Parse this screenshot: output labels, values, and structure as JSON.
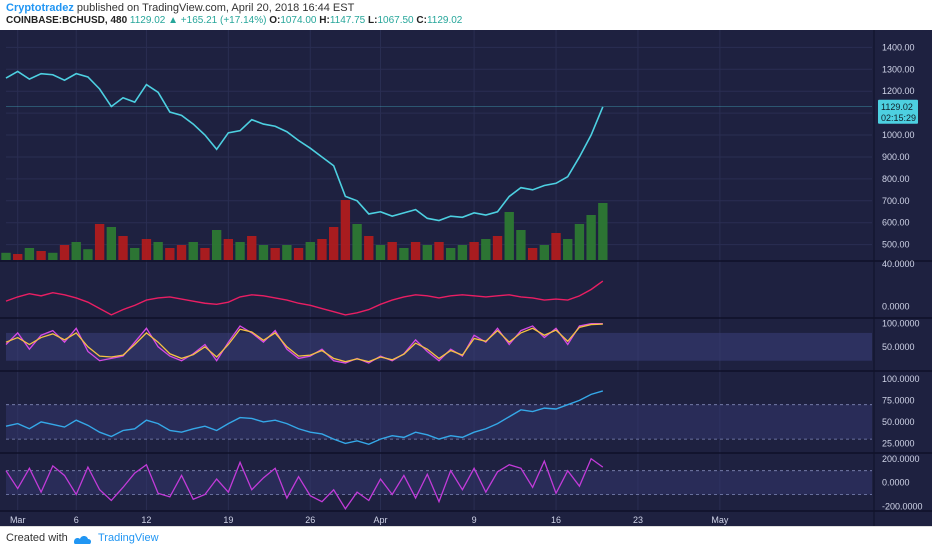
{
  "header": {
    "author": "Cryptotradez",
    "published": "published on TradingView.com, April 20, 2018 16:44 EST",
    "symbol": "COINBASE:BCHUSD, 480",
    "last": "1129.02",
    "change": "+165.21 (+17.14%)",
    "open_label": "O:",
    "open": "1074.00",
    "high_label": "H:",
    "high": "1147.75",
    "low_label": "L:",
    "low": "1067.50",
    "close_label": "C:",
    "close": "1129.02"
  },
  "footer": {
    "created": "Created with",
    "brand": "TradingView"
  },
  "colors": {
    "background": "#1e2140",
    "price_line": "#4dd0e1",
    "vol_up": "#2e7d32",
    "vol_down": "#b71c1c",
    "pane2_line": "#e91e63",
    "stoch_k": "#d64be6",
    "stoch_d": "#f5c242",
    "rsi_line": "#35a8e8",
    "cci_line": "#c23bd9"
  },
  "price_badge": {
    "value": "1129.02",
    "countdown": "02:15:29"
  },
  "chart_data": [
    {
      "type": "line",
      "name": "price",
      "ylim": [
        430,
        1470
      ],
      "y_ticks": [
        "1400.00",
        "1300.00",
        "1200.00",
        "1100.00",
        "1000.00",
        "900.00",
        "800.00",
        "700.00",
        "600.00",
        "500.00"
      ],
      "y_tick_values": [
        1400,
        1300,
        1200,
        1100,
        1000,
        900,
        800,
        700,
        600,
        500
      ],
      "x_ticks": [
        "Mar",
        "6",
        "12",
        "19",
        "26",
        "Apr",
        "9",
        "16",
        "23",
        "May"
      ],
      "x_tick_values": [
        1,
        6,
        12,
        19,
        26,
        32,
        40,
        47,
        54,
        61
      ],
      "xlim": [
        0,
        74
      ],
      "x": [
        0,
        1,
        2,
        3,
        4,
        5,
        6,
        7,
        8,
        9,
        10,
        11,
        12,
        13,
        14,
        15,
        16,
        17,
        18,
        19,
        20,
        21,
        22,
        23,
        24,
        25,
        26,
        27,
        28,
        29,
        30,
        31,
        32,
        33,
        34,
        35,
        36,
        37,
        38,
        39,
        40,
        41,
        42,
        43,
        44,
        45,
        46,
        47,
        48,
        49,
        50,
        51
      ],
      "values": [
        1260,
        1290,
        1255,
        1280,
        1275,
        1250,
        1280,
        1265,
        1210,
        1130,
        1170,
        1150,
        1230,
        1195,
        1105,
        1090,
        1050,
        1000,
        935,
        1010,
        1020,
        1070,
        1050,
        1040,
        1015,
        975,
        940,
        900,
        860,
        720,
        700,
        640,
        650,
        630,
        645,
        660,
        620,
        610,
        630,
        625,
        645,
        635,
        650,
        720,
        760,
        750,
        770,
        780,
        810,
        900,
        1000,
        1129
      ]
    },
    {
      "type": "bar",
      "name": "volume",
      "x": [
        0,
        1,
        2,
        3,
        4,
        5,
        6,
        7,
        8,
        9,
        10,
        11,
        12,
        13,
        14,
        15,
        16,
        17,
        18,
        19,
        20,
        21,
        22,
        23,
        24,
        25,
        26,
        27,
        28,
        29,
        30,
        31,
        32,
        33,
        34,
        35,
        36,
        37,
        38,
        39,
        40,
        41,
        42,
        43,
        44,
        45,
        46,
        47,
        48,
        49,
        50,
        51
      ],
      "values": [
        0.12,
        0.1,
        0.2,
        0.15,
        0.12,
        0.25,
        0.3,
        0.18,
        0.6,
        0.55,
        0.4,
        0.2,
        0.35,
        0.3,
        0.2,
        0.25,
        0.3,
        0.2,
        0.5,
        0.35,
        0.3,
        0.4,
        0.25,
        0.2,
        0.25,
        0.2,
        0.3,
        0.35,
        0.55,
        1.0,
        0.6,
        0.4,
        0.25,
        0.3,
        0.2,
        0.3,
        0.25,
        0.3,
        0.2,
        0.25,
        0.3,
        0.35,
        0.4,
        0.8,
        0.5,
        0.2,
        0.25,
        0.45,
        0.35,
        0.6,
        0.75,
        0.95
      ],
      "up": [
        1,
        0,
        1,
        0,
        1,
        0,
        1,
        1,
        0,
        1,
        0,
        1,
        0,
        1,
        0,
        0,
        1,
        0,
        1,
        0,
        1,
        0,
        1,
        0,
        1,
        0,
        1,
        0,
        0,
        0,
        1,
        0,
        1,
        0,
        1,
        0,
        1,
        0,
        1,
        1,
        0,
        1,
        0,
        1,
        1,
        0,
        1,
        0,
        1,
        1,
        1,
        1
      ]
    },
    {
      "type": "line",
      "name": "oscillator",
      "ylim": [
        -10,
        42
      ],
      "y_ticks": [
        "40.0000",
        "0.0000"
      ],
      "y_tick_values": [
        40,
        0
      ],
      "x": [
        0,
        1,
        2,
        3,
        4,
        5,
        6,
        7,
        8,
        9,
        10,
        11,
        12,
        13,
        14,
        15,
        16,
        17,
        18,
        19,
        20,
        21,
        22,
        23,
        24,
        25,
        26,
        27,
        28,
        29,
        30,
        31,
        32,
        33,
        34,
        35,
        36,
        37,
        38,
        39,
        40,
        41,
        42,
        43,
        44,
        45,
        46,
        47,
        48,
        49,
        50,
        51
      ],
      "values": [
        5,
        9,
        12,
        10,
        13,
        11,
        8,
        4,
        -2,
        -8,
        -3,
        1,
        6,
        8,
        9,
        7,
        5,
        3,
        2,
        4,
        9,
        11,
        10,
        8,
        6,
        3,
        1,
        -2,
        -5,
        -8,
        -6,
        -3,
        2,
        6,
        9,
        11,
        10,
        8,
        10,
        11,
        10,
        9,
        10,
        11,
        9,
        8,
        6,
        7,
        6,
        10,
        16,
        24
      ]
    },
    {
      "type": "line",
      "name": "stochastic",
      "ylim": [
        0,
        110
      ],
      "y_ticks": [
        "100.0000",
        "50.0000"
      ],
      "y_tick_values": [
        100,
        50
      ],
      "band": [
        20,
        80
      ],
      "x": [
        0,
        1,
        2,
        3,
        4,
        5,
        6,
        7,
        8,
        9,
        10,
        11,
        12,
        13,
        14,
        15,
        16,
        17,
        18,
        19,
        20,
        21,
        22,
        23,
        24,
        25,
        26,
        27,
        28,
        29,
        30,
        31,
        32,
        33,
        34,
        35,
        36,
        37,
        38,
        39,
        40,
        41,
        42,
        43,
        44,
        45,
        46,
        47,
        48,
        49,
        50,
        51
      ],
      "series": [
        {
          "values": [
            55,
            80,
            45,
            75,
            85,
            60,
            90,
            40,
            20,
            25,
            30,
            60,
            90,
            50,
            30,
            20,
            35,
            55,
            20,
            60,
            95,
            80,
            60,
            85,
            45,
            25,
            30,
            45,
            20,
            15,
            25,
            15,
            30,
            20,
            35,
            65,
            40,
            20,
            45,
            30,
            75,
            60,
            90,
            55,
            85,
            95,
            70,
            90,
            55,
            95,
            100,
            100
          ]
        },
        {
          "values": [
            60,
            70,
            55,
            70,
            78,
            65,
            80,
            50,
            30,
            28,
            32,
            55,
            80,
            60,
            35,
            25,
            33,
            50,
            28,
            55,
            88,
            82,
            64,
            80,
            50,
            30,
            32,
            42,
            25,
            18,
            24,
            18,
            28,
            22,
            34,
            58,
            45,
            25,
            42,
            32,
            68,
            62,
            85,
            60,
            80,
            90,
            75,
            86,
            62,
            92,
            98,
            99
          ]
        }
      ]
    },
    {
      "type": "line",
      "name": "rsi",
      "ylim": [
        15,
        108
      ],
      "y_ticks": [
        "100.0000",
        "75.0000",
        "50.0000",
        "25.0000"
      ],
      "y_tick_values": [
        100,
        75,
        50,
        25
      ],
      "band": [
        30,
        70
      ],
      "x": [
        0,
        1,
        2,
        3,
        4,
        5,
        6,
        7,
        8,
        9,
        10,
        11,
        12,
        13,
        14,
        15,
        16,
        17,
        18,
        19,
        20,
        21,
        22,
        23,
        24,
        25,
        26,
        27,
        28,
        29,
        30,
        31,
        32,
        33,
        34,
        35,
        36,
        37,
        38,
        39,
        40,
        41,
        42,
        43,
        44,
        45,
        46,
        47,
        48,
        49,
        50,
        51
      ],
      "values": [
        45,
        48,
        42,
        50,
        47,
        44,
        52,
        46,
        38,
        33,
        40,
        42,
        52,
        48,
        40,
        38,
        42,
        45,
        40,
        48,
        55,
        54,
        50,
        52,
        48,
        42,
        38,
        36,
        30,
        25,
        28,
        24,
        30,
        34,
        32,
        38,
        35,
        30,
        34,
        32,
        38,
        42,
        48,
        56,
        64,
        62,
        66,
        65,
        70,
        75,
        82,
        86
      ]
    },
    {
      "type": "line",
      "name": "cci",
      "ylim": [
        -230,
        240
      ],
      "y_ticks": [
        "200.0000",
        "0.0000",
        "-200.0000"
      ],
      "y_tick_values": [
        200,
        0,
        -200
      ],
      "band": [
        -100,
        100
      ],
      "x": [
        0,
        1,
        2,
        3,
        4,
        5,
        6,
        7,
        8,
        9,
        10,
        11,
        12,
        13,
        14,
        15,
        16,
        17,
        18,
        19,
        20,
        21,
        22,
        23,
        24,
        25,
        26,
        27,
        28,
        29,
        30,
        31,
        32,
        33,
        34,
        35,
        36,
        37,
        38,
        39,
        40,
        41,
        42,
        43,
        44,
        45,
        46,
        47,
        48,
        49,
        50,
        51
      ],
      "values": [
        100,
        -50,
        120,
        -80,
        140,
        60,
        -100,
        130,
        -60,
        -150,
        -40,
        80,
        150,
        -90,
        -120,
        60,
        -140,
        -100,
        30,
        -80,
        170,
        -60,
        40,
        120,
        -130,
        50,
        -110,
        -160,
        -60,
        -220,
        -80,
        -150,
        30,
        -100,
        60,
        -130,
        70,
        -160,
        100,
        -60,
        120,
        -80,
        90,
        150,
        120,
        -40,
        180,
        -90,
        100,
        -30,
        200,
        130
      ]
    }
  ]
}
